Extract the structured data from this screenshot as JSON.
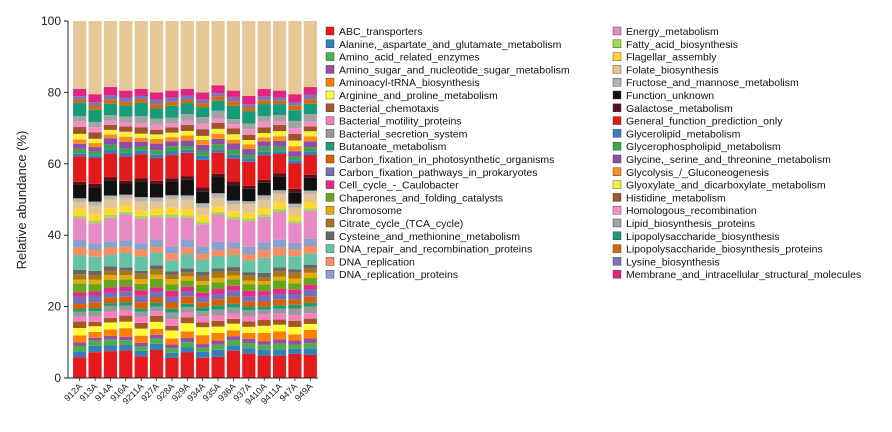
{
  "chart_data": {
    "type": "bar",
    "stacked": true,
    "ylabel": "Relative abundance (%)",
    "xlabel": "",
    "ylim": [
      0,
      100
    ],
    "yticks": [
      0,
      20,
      40,
      60,
      80,
      100
    ],
    "grid": false,
    "legend_position": "right",
    "categories": [
      "912A",
      "913A",
      "914A",
      "916A",
      "9211A",
      "927A",
      "928A",
      "929A",
      "934A",
      "935A",
      "936A",
      "937A",
      "9410A",
      "9411A",
      "947A",
      "949A"
    ],
    "categories_display": [
      "912A",
      "913A",
      "914A",
      "916A",
      "9211A",
      "927A",
      "928A",
      "929A",
      "934A",
      "935A",
      "936A",
      "937A",
      "9410A",
      "9411A",
      "947A",
      "949A"
    ],
    "bar_top_values": [
      81.0,
      79.5,
      81.5,
      80.5,
      81.0,
      80.0,
      80.5,
      81.0,
      80.0,
      82.0,
      80.5,
      79.0,
      81.0,
      80.5,
      79.5,
      81.5
    ],
    "series": [
      {
        "name": "ABC_transporters",
        "color": "#e41a1c"
      },
      {
        "name": "Alanine,_aspartate_and_glutamate_metabolism",
        "color": "#377eb8"
      },
      {
        "name": "Amino_acid_related_enzymes",
        "color": "#4daf4a"
      },
      {
        "name": "Amino_sugar_and_nucleotide_sugar_metabolism",
        "color": "#984ea3"
      },
      {
        "name": "Aminoacyl-tRNA_biosynthesis",
        "color": "#ff7f00"
      },
      {
        "name": "Arginine_and_proline_metabolism",
        "color": "#ffff33"
      },
      {
        "name": "Bacterial_chemotaxis",
        "color": "#a65628"
      },
      {
        "name": "Bacterial_motility_proteins",
        "color": "#f781bf"
      },
      {
        "name": "Bacterial_secretion_system",
        "color": "#999999"
      },
      {
        "name": "Butanoate_metabolism",
        "color": "#1b9e77"
      },
      {
        "name": "Carbon_fixation_in_photosynthetic_organisms",
        "color": "#d95f02"
      },
      {
        "name": "Carbon_fixation_pathways_in_prokaryotes",
        "color": "#7570b3"
      },
      {
        "name": "Cell_cycle_-_Caulobacter",
        "color": "#e7298a"
      },
      {
        "name": "Chaperones_and_folding_catalysts",
        "color": "#66a61e"
      },
      {
        "name": "Chromosome",
        "color": "#e6ab02"
      },
      {
        "name": "Citrate_cycle_(TCA_cycle)",
        "color": "#a6761d"
      },
      {
        "name": "Cysteine_and_methionine_metabolism",
        "color": "#666666"
      },
      {
        "name": "DNA_repair_and_recombination_proteins",
        "color": "#66c2a5"
      },
      {
        "name": "DNA_replication",
        "color": "#fc8d62"
      },
      {
        "name": "DNA_replication_proteins",
        "color": "#8da0cb"
      },
      {
        "name": "Energy_metabolism",
        "color": "#e78ac3"
      },
      {
        "name": "Fatty_acid_biosynthesis",
        "color": "#a6d854"
      },
      {
        "name": "Flagellar_assembly",
        "color": "#ffd92f"
      },
      {
        "name": "Folate_biosynthesis",
        "color": "#e5c494"
      },
      {
        "name": "Fructose_and_mannose_metabolism",
        "color": "#b3b3b3"
      },
      {
        "name": "Function_unknown",
        "color": "#111111"
      },
      {
        "name": "Galactose_metabolism",
        "color": "#5b0f1a"
      },
      {
        "name": "General_function_prediction_only",
        "color": "#e31a1c"
      },
      {
        "name": "Glycerolipid_metabolism",
        "color": "#3a7dbf"
      },
      {
        "name": "Glycerophospholipid_metabolism",
        "color": "#3fa34d"
      },
      {
        "name": "Glycine,_serine_and_threonine_metabolism",
        "color": "#8e4fa8"
      },
      {
        "name": "Glycolysis_/_Gluconeogenesis",
        "color": "#ff8c1a"
      },
      {
        "name": "Glyoxylate_and_dicarboxylate_metabolism",
        "color": "#f2f23a"
      },
      {
        "name": "Histidine_metabolism",
        "color": "#a0522d"
      },
      {
        "name": "Homologous_recombination",
        "color": "#f48fc4"
      },
      {
        "name": "Lipid_biosynthesis_proteins",
        "color": "#a3a3a3"
      },
      {
        "name": "Lipopolysaccharide_biosynthesis",
        "color": "#169c7a"
      },
      {
        "name": "Lipopolysaccharide_biosynthesis_proteins",
        "color": "#d46a0a"
      },
      {
        "name": "Lysine_biosynthesis",
        "color": "#7f73b8"
      },
      {
        "name": "Membrane_and_intracellular_structural_molecules",
        "color": "#e0247f"
      }
    ],
    "others_color": "#e8c797"
  }
}
